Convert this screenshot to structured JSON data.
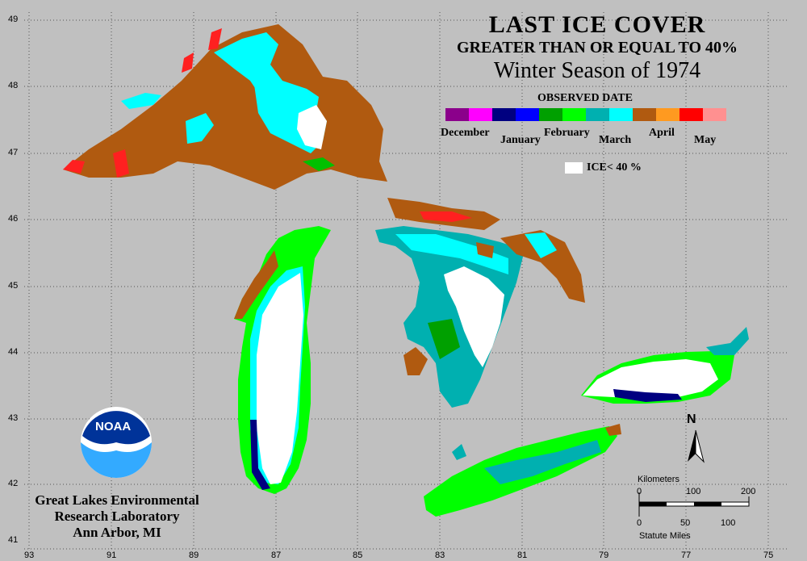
{
  "title": {
    "line1": "LAST ICE COVER",
    "line2": "GREATER THAN OR EQUAL TO 40%",
    "line3": "Winter Season of 1974"
  },
  "legend": {
    "heading": "OBSERVED DATE",
    "months": [
      "December",
      "January",
      "February",
      "March",
      "April",
      "May"
    ],
    "colors": [
      "#8b008b",
      "#ff00ff",
      "#000080",
      "#0000ff",
      "#00a000",
      "#00ff00",
      "#00b0b0",
      "#00ffff",
      "#b05a10",
      "#ff9a20",
      "#ff0000",
      "#ff9090"
    ],
    "ice_label": "ICE< 40 %"
  },
  "axes": {
    "latitudes": [
      "49",
      "48",
      "47",
      "46",
      "45",
      "44",
      "43",
      "42",
      "41"
    ],
    "longitudes": [
      "93",
      "91",
      "89",
      "87",
      "85",
      "83",
      "81",
      "79",
      "77",
      "75"
    ]
  },
  "organization": {
    "name_line1": "Great Lakes Environmental",
    "name_line2": "Research Laboratory",
    "name_line3": "Ann Arbor, MI",
    "logo_text": "NOAA"
  },
  "scale": {
    "km_title": "Kilometers",
    "km_ticks": [
      "0",
      "100",
      "200"
    ],
    "mi_ticks": [
      "0",
      "50",
      "100"
    ],
    "mi_title": "Statute Miles",
    "north_label": "N"
  },
  "palette": {
    "brown": "#b05a10",
    "white": "#ffffff",
    "cyan": "#00ffff",
    "teal": "#00b0b0",
    "green": "#00ff00",
    "darkgreen": "#00a000",
    "red": "#ff2020",
    "blue": "#000080"
  }
}
